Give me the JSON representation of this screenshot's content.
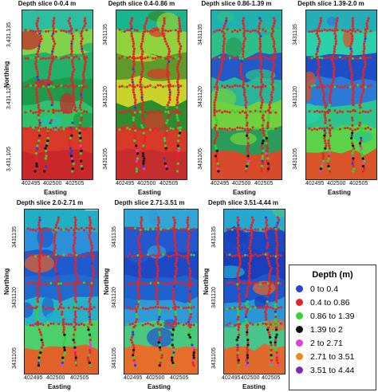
{
  "panels": [
    {
      "title": "Depth slice 0-0.4 m",
      "scheme": 0
    },
    {
      "title": "Depth slice 0.4-0.86 m",
      "scheme": 1
    },
    {
      "title": "Depth slice 0.86-1.39 m",
      "scheme": 2
    },
    {
      "title": "Depth slice 1.39-2.0 m",
      "scheme": 3
    },
    {
      "title": "Depth slice 2.0-2.71 m",
      "scheme": 4
    },
    {
      "title": "Depth slice 2.71-3.51 m",
      "scheme": 5
    },
    {
      "title": "Depth slice 3.51-4.44 m",
      "scheme": 6
    }
  ],
  "axes": {
    "northing_label": "Northing",
    "easting_label": "Easting",
    "y_ticks": [
      "3431135",
      "3431120",
      "3431105"
    ],
    "y_ticks_first": [
      "3,431,135",
      "3,431,120",
      "3,431,105"
    ],
    "x_ticks": [
      "402495",
      "402500",
      "402505"
    ]
  },
  "legend": {
    "title": "Depth (m)",
    "items": [
      {
        "label": "0 to 0.4",
        "color": "#2a3fd6"
      },
      {
        "label": "0.4 to 0.86",
        "color": "#e0262b"
      },
      {
        "label": "0.86 to 1.39",
        "color": "#33d433"
      },
      {
        "label": "1.39 to 2",
        "color": "#111111"
      },
      {
        "label": "2 to 2.71",
        "color": "#e23fd9"
      },
      {
        "label": "2.71 to 3.51",
        "color": "#f08a1c"
      },
      {
        "label": "3.51 to 4.44",
        "color": "#7b2fb0"
      }
    ]
  }
}
